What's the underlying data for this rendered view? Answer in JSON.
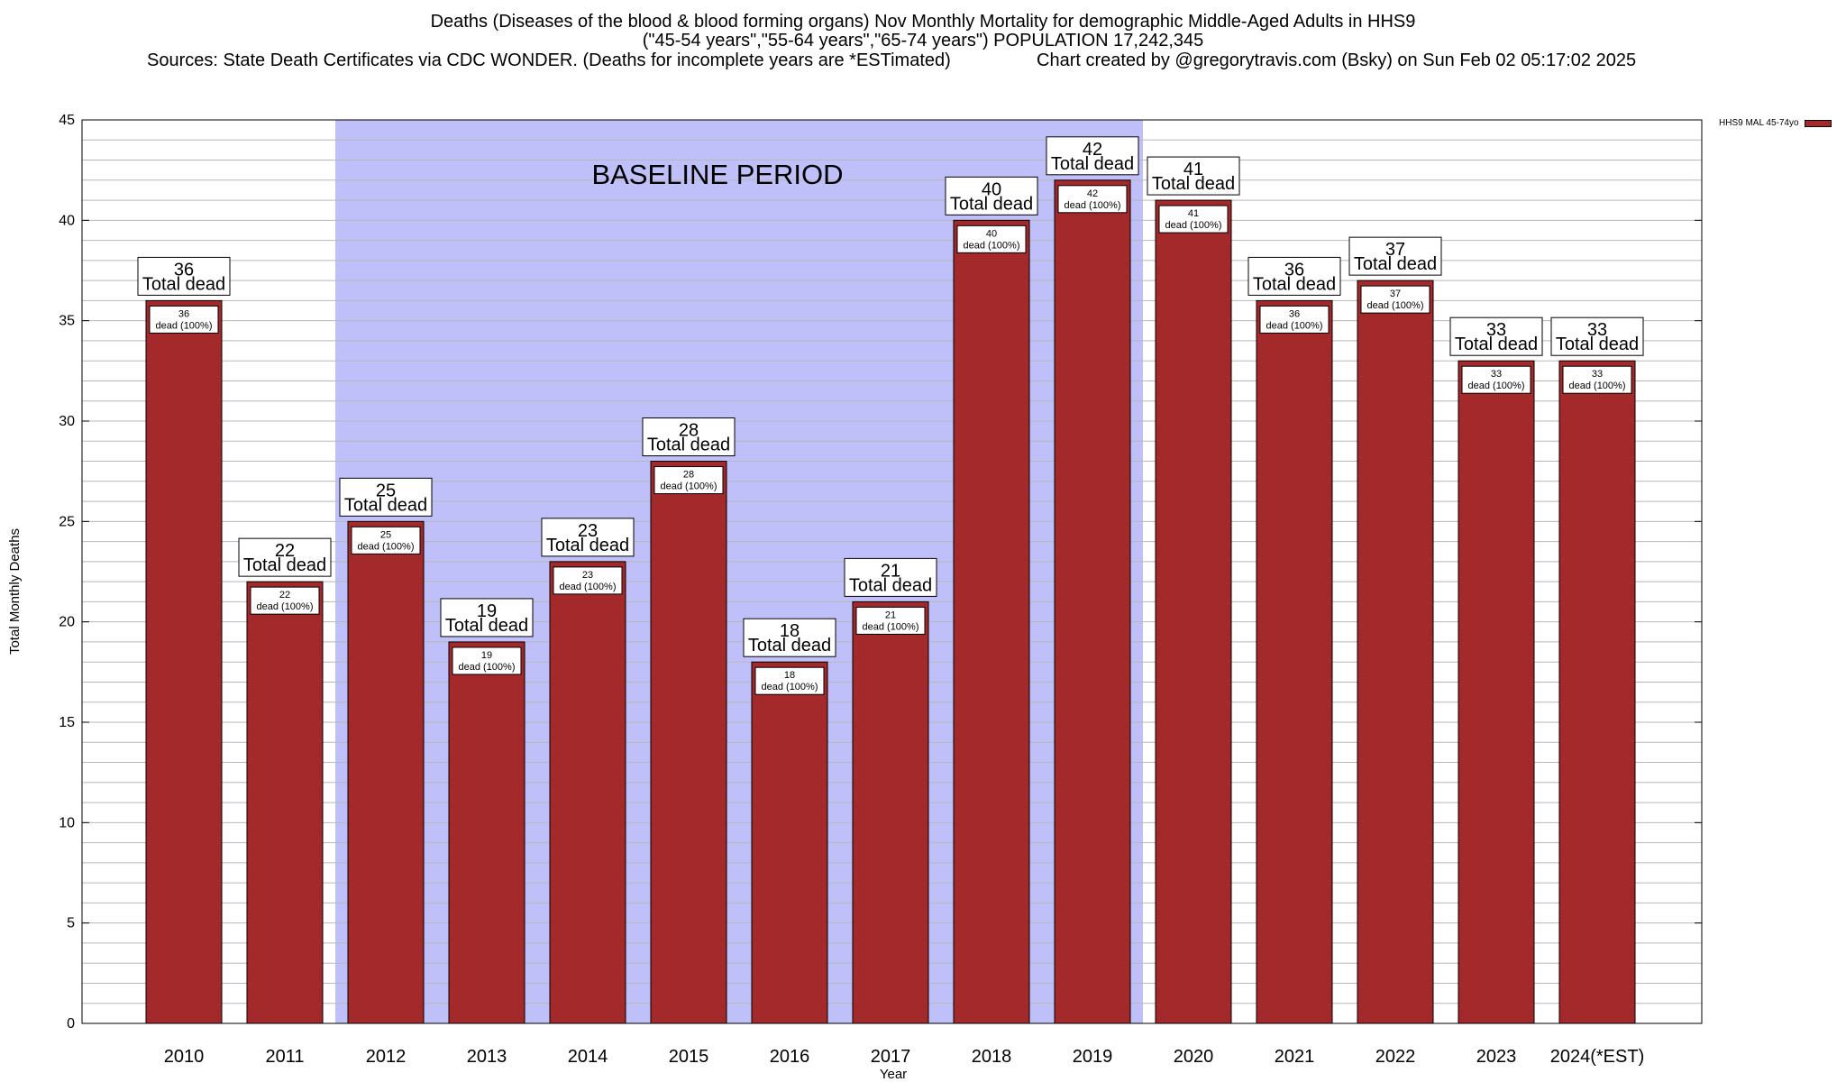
{
  "title_lines": [
    "Deaths (Diseases of the blood & blood forming organs) Nov Monthly Mortality for demographic Middle-Aged Adults in HHS9",
    "(\"45-54 years\",\"55-64 years\",\"65-74 years\") POPULATION 17,242,345"
  ],
  "sources": "Sources: State Death Certificates via CDC WONDER. (Deaths for incomplete years are *ESTimated)",
  "credit": "Chart created by @gregorytravis.com (Bsky) on Sun Feb 02 05:17:02 2025",
  "colors": {
    "bar": "#a3292a",
    "baseline": "#bfbff9",
    "grid": "#b8b8b8"
  },
  "chart_data": {
    "type": "bar",
    "categories": [
      "2010",
      "2011",
      "2012",
      "2013",
      "2014",
      "2015",
      "2016",
      "2017",
      "2018",
      "2019",
      "2020",
      "2021",
      "2022",
      "2023",
      "2024(*EST)"
    ],
    "series": [
      {
        "name": "HHS9 MAL 45-74yo",
        "values": [
          36,
          22,
          25,
          19,
          23,
          28,
          18,
          21,
          40,
          42,
          41,
          36,
          37,
          33,
          33
        ]
      }
    ],
    "bar_label_top_suffix": "Total dead",
    "bar_label_inner_suffix": "dead (100%)",
    "xlabel": "Year",
    "ylabel": "Total Monthly Deaths",
    "ylim": [
      0,
      45
    ],
    "yticks": [
      0,
      5,
      10,
      15,
      20,
      25,
      30,
      35,
      40,
      45
    ],
    "grid": true,
    "baseline_period": {
      "label": "BASELINE PERIOD",
      "from": "2012",
      "to": "2019"
    },
    "legend": {
      "position": "top-right",
      "entries": [
        "HHS9 MAL 45-74yo"
      ]
    }
  }
}
